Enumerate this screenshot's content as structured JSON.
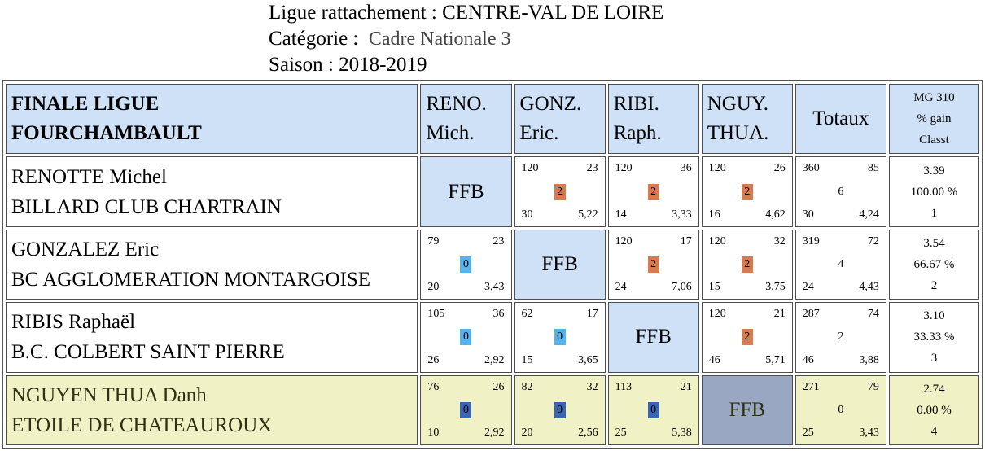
{
  "header": {
    "ligue_label": "Ligue rattachement :",
    "ligue_value": "CENTRE-VAL DE LOIRE",
    "categorie_label": "Catégorie :",
    "categorie_value": "Cadre Nationale 3",
    "saison_label": "Saison :",
    "saison_value": "2018-2019"
  },
  "table": {
    "title_line1": "FINALE LIGUE",
    "title_line2": "FOURCHAMBAULT",
    "columns": [
      {
        "line1": "RENO.",
        "line2": "Mich."
      },
      {
        "line1": "GONZ.",
        "line2": "Eric."
      },
      {
        "line1": "RIBI.",
        "line2": "Raph."
      },
      {
        "line1": "NGUY.",
        "line2": "THUA."
      }
    ],
    "totals_label": "Totaux",
    "mg_header": {
      "line1": "MG 310",
      "line2": "% gain",
      "line3": "Classt"
    },
    "ffb_label": "FFB",
    "rows": [
      {
        "name": "RENOTTE Michel",
        "club": "BILLARD CLUB CHARTRAIN",
        "matches": [
          null,
          {
            "points_scored": "120",
            "high_run": "23",
            "match_points": "2",
            "innings": "30",
            "average": "5,22"
          },
          {
            "points_scored": "120",
            "high_run": "36",
            "match_points": "2",
            "innings": "14",
            "average": "3,33"
          },
          {
            "points_scored": "120",
            "high_run": "26",
            "match_points": "2",
            "innings": "16",
            "average": "4,62"
          }
        ],
        "totals": {
          "points_scored": "360",
          "high_run": "85",
          "match_points": "6",
          "innings": "30",
          "average": "4,24"
        },
        "mg": "3.39",
        "gain_pct": "100.00 %",
        "rank": "1"
      },
      {
        "name": "GONZALEZ Eric",
        "club": "BC AGGLOMERATION MONTARGOISE",
        "matches": [
          {
            "points_scored": "79",
            "high_run": "23",
            "match_points": "0",
            "innings": "20",
            "average": "3,43"
          },
          null,
          {
            "points_scored": "120",
            "high_run": "17",
            "match_points": "2",
            "innings": "24",
            "average": "7,06"
          },
          {
            "points_scored": "120",
            "high_run": "32",
            "match_points": "2",
            "innings": "15",
            "average": "3,75"
          }
        ],
        "totals": {
          "points_scored": "319",
          "high_run": "72",
          "match_points": "4",
          "innings": "24",
          "average": "4,43"
        },
        "mg": "3.54",
        "gain_pct": "66.67 %",
        "rank": "2"
      },
      {
        "name": "RIBIS Raphaël",
        "club": "B.C. COLBERT SAINT PIERRE",
        "matches": [
          {
            "points_scored": "105",
            "high_run": "36",
            "match_points": "0",
            "innings": "26",
            "average": "2,92"
          },
          {
            "points_scored": "62",
            "high_run": "17",
            "match_points": "0",
            "innings": "15",
            "average": "3,65"
          },
          null,
          {
            "points_scored": "120",
            "high_run": "21",
            "match_points": "2",
            "innings": "46",
            "average": "5,71"
          }
        ],
        "totals": {
          "points_scored": "287",
          "high_run": "74",
          "match_points": "2",
          "innings": "46",
          "average": "3,88"
        },
        "mg": "3.10",
        "gain_pct": "33.33 %",
        "rank": "3"
      },
      {
        "name": "NGUYEN THUA Danh",
        "club": "ETOILE DE CHATEAUROUX",
        "matches": [
          {
            "points_scored": "76",
            "high_run": "26",
            "match_points": "0",
            "innings": "10",
            "average": "2,92"
          },
          {
            "points_scored": "82",
            "high_run": "32",
            "match_points": "0",
            "innings": "20",
            "average": "2,56"
          },
          {
            "points_scored": "113",
            "high_run": "21",
            "match_points": "0",
            "innings": "25",
            "average": "5,38"
          },
          null
        ],
        "totals": {
          "points_scored": "271",
          "high_run": "79",
          "match_points": "0",
          "innings": "25",
          "average": "3,43"
        },
        "mg": "2.74",
        "gain_pct": "0.00 %",
        "rank": "4"
      }
    ]
  },
  "colors": {
    "header_blue": "#cfe1f6",
    "highlight_yellow": "#f1f1c6",
    "ffb_gray": "#9aa7c3",
    "win_orange": "#d67b51",
    "loss_light_blue": "#56b3ee",
    "loss_dark_blue": "#3a65b3"
  }
}
